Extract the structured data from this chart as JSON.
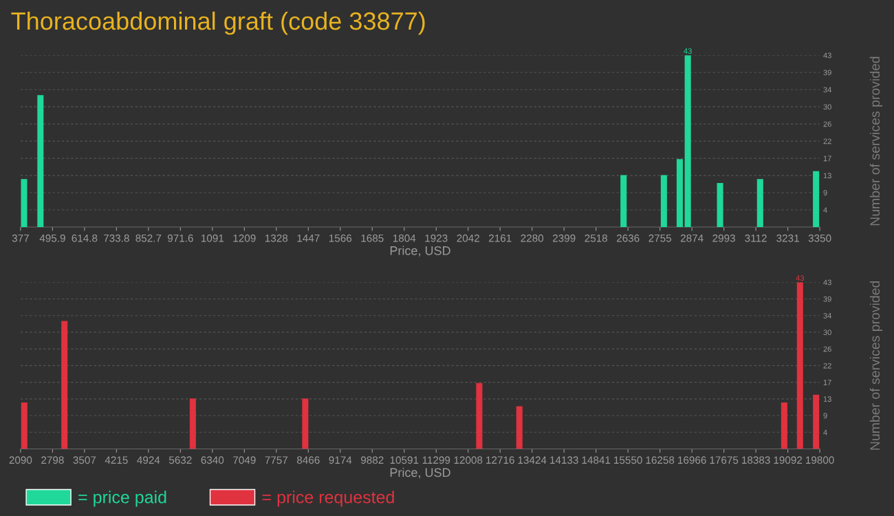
{
  "chart_data": [
    {
      "type": "bar",
      "title": "Thoracoabdominal graft (code 33877)",
      "xlabel": "Price, USD",
      "ylabel": "Number of services provided",
      "x": [
        390,
        451,
        2620,
        2770,
        2829,
        2859,
        2979,
        3128,
        3336
      ],
      "series": [
        {
          "name": "= price paid",
          "color": "#1fd89a",
          "values": [
            12,
            33,
            13,
            13,
            17,
            43,
            11,
            12,
            14
          ],
          "value_labels": [
            null,
            null,
            null,
            null,
            null,
            "43",
            null,
            null,
            null
          ]
        }
      ],
      "xlim": [
        377,
        3350
      ],
      "xticks": [
        377,
        {
          "value": 495.92,
          "label": "495.9"
        },
        {
          "value": 614.84,
          "label": "614.8"
        },
        {
          "value": 733.76,
          "label": "733.8"
        },
        {
          "value": 852.68,
          "label": "852.7"
        },
        971.6,
        {
          "value": 1090.52,
          "label": "1091"
        },
        {
          "value": 1209.44,
          "label": "1209"
        },
        {
          "value": 1328.36,
          "label": "1328"
        },
        {
          "value": 1447.28,
          "label": "1447"
        },
        {
          "value": 1566.2,
          "label": "1566"
        },
        {
          "value": 1685.12,
          "label": "1685"
        },
        {
          "value": 1804.04,
          "label": "1804"
        },
        {
          "value": 1922.96,
          "label": "1923"
        },
        {
          "value": 2041.88,
          "label": "2042"
        },
        {
          "value": 2160.8,
          "label": "2161"
        },
        {
          "value": 2279.72,
          "label": "2280"
        },
        {
          "value": 2398.64,
          "label": "2399"
        },
        {
          "value": 2517.56,
          "label": "2518"
        },
        {
          "value": 2636.48,
          "label": "2636"
        },
        {
          "value": 2755.4,
          "label": "2755"
        },
        {
          "value": 2874.32,
          "label": "2874"
        },
        {
          "value": 2993.24,
          "label": "2993"
        },
        {
          "value": 3112.16,
          "label": "3112"
        },
        {
          "value": 3231.08,
          "label": "3231"
        },
        3350
      ],
      "ylim": [
        0,
        43
      ],
      "yticks": [
        {
          "value": 4.3,
          "label": "4"
        },
        {
          "value": 8.6,
          "label": "9"
        },
        {
          "value": 12.9,
          "label": "13"
        },
        {
          "value": 17.2,
          "label": "17"
        },
        {
          "value": 21.5,
          "label": "22"
        },
        {
          "value": 25.8,
          "label": "26"
        },
        {
          "value": 30.1,
          "label": "30"
        },
        {
          "value": 34.4,
          "label": "34"
        },
        {
          "value": 38.7,
          "label": "39"
        },
        43
      ],
      "grid": "y",
      "legend": "bottom left"
    },
    {
      "type": "bar",
      "xlabel": "Price, USD",
      "ylabel": "Number of services provided",
      "x": [
        2172,
        3062,
        5907,
        8398,
        12254,
        13143,
        19012,
        19361,
        19717
      ],
      "series": [
        {
          "name": "= price requested",
          "color": "#e0323f",
          "values": [
            12,
            33,
            13,
            13,
            17,
            11,
            12,
            43,
            14
          ],
          "value_labels": [
            null,
            null,
            null,
            null,
            null,
            null,
            null,
            "43",
            null
          ]
        }
      ],
      "xlim": [
        2090,
        19800
      ],
      "xticks": [
        2090,
        {
          "value": 2798.4,
          "label": "2798"
        },
        {
          "value": 3506.8,
          "label": "3507"
        },
        {
          "value": 4215.2,
          "label": "4215"
        },
        {
          "value": 4923.6,
          "label": "4924"
        },
        5632,
        {
          "value": 6340.4,
          "label": "6340"
        },
        {
          "value": 7048.8,
          "label": "7049"
        },
        {
          "value": 7757.2,
          "label": "7757"
        },
        {
          "value": 8465.6,
          "label": "8466"
        },
        9174,
        {
          "value": 9882.4,
          "label": "9882"
        },
        {
          "value": 10590.8,
          "label": "10591"
        },
        {
          "value": 11299.2,
          "label": "11299"
        },
        {
          "value": 12007.6,
          "label": "12008"
        },
        12716,
        {
          "value": 13424.4,
          "label": "13424"
        },
        {
          "value": 14132.8,
          "label": "14133"
        },
        {
          "value": 14841.2,
          "label": "14841"
        },
        {
          "value": 15549.6,
          "label": "15550"
        },
        16258,
        {
          "value": 16966.4,
          "label": "16966"
        },
        {
          "value": 17674.8,
          "label": "17675"
        },
        {
          "value": 18383.2,
          "label": "18383"
        },
        {
          "value": 19091.6,
          "label": "19092"
        },
        19800
      ],
      "ylim": [
        0,
        43
      ],
      "yticks": [
        {
          "value": 4.3,
          "label": "4"
        },
        {
          "value": 8.6,
          "label": "9"
        },
        {
          "value": 12.9,
          "label": "13"
        },
        {
          "value": 17.2,
          "label": "17"
        },
        {
          "value": 21.5,
          "label": "22"
        },
        {
          "value": 25.8,
          "label": "26"
        },
        {
          "value": 30.1,
          "label": "30"
        },
        {
          "value": 34.4,
          "label": "34"
        },
        {
          "value": 38.7,
          "label": "39"
        },
        43
      ],
      "grid": "y",
      "legend": "bottom left"
    }
  ]
}
